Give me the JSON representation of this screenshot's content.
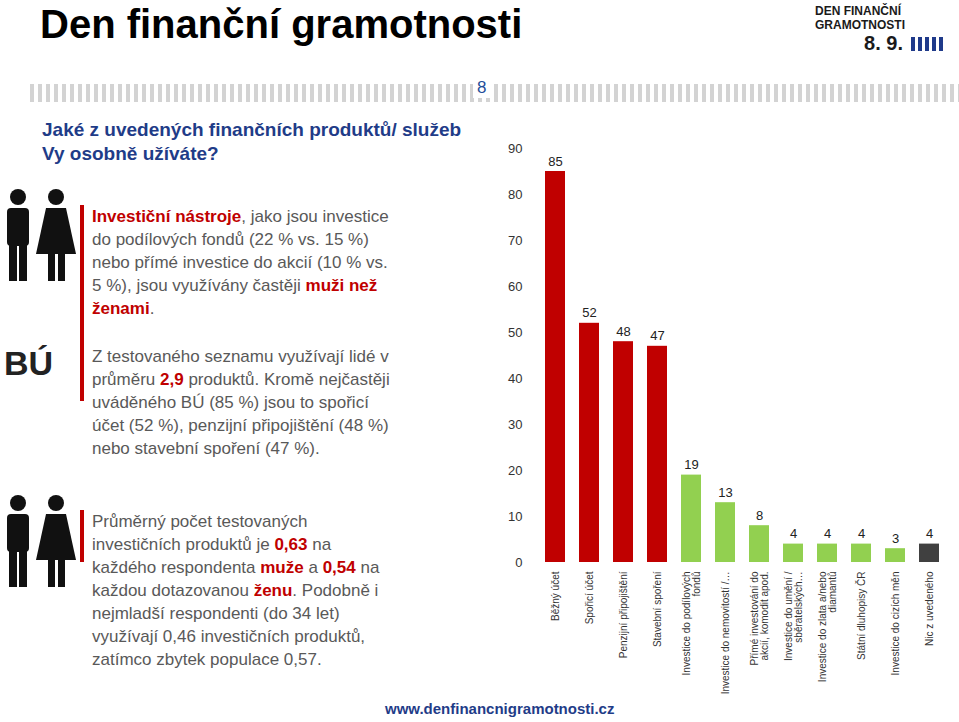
{
  "chart_data": {
    "type": "bar",
    "title": "Jaké z uvedených finančních produktů/ služeb Vy osobně užíváte?",
    "categories": [
      "Běžný účet",
      "Spořicí účet",
      "Penzijní připojištění",
      "Stavební spoření",
      "Investice do podílových fondů",
      "Investice do nemovitostí /…",
      "Přímé investování do akcií, komodit apod.",
      "Investice do umění / sběratelských…",
      "Investice do zlata a/nebo diamantů",
      "Státní dluhopisy ČR",
      "Investice do cizích měn",
      "Nic z uvedeného"
    ],
    "values": [
      85,
      52,
      48,
      47,
      19,
      13,
      8,
      4,
      4,
      4,
      3,
      4
    ],
    "colors": [
      "#c00000",
      "#c00000",
      "#c00000",
      "#c00000",
      "#92d050",
      "#92d050",
      "#92d050",
      "#92d050",
      "#92d050",
      "#92d050",
      "#92d050",
      "#404040"
    ],
    "ylim": [
      0,
      90
    ],
    "yticks": [
      0,
      10,
      20,
      30,
      40,
      50,
      60,
      70,
      80,
      90
    ],
    "grid": false,
    "data_labels": true
  },
  "slide": {
    "header": "Den finanční gramotnosti",
    "logo": [
      "DEN FINANČNÍ GRAMOTNOSTI",
      "8. 9."
    ],
    "page": "8",
    "badge": "BÚ",
    "url": "www.denfinancnigramotnosti.cz",
    "paragraphs": [
      [
        {
          "t": "Investiční nástroje",
          "em": true
        },
        {
          "t": ", jako jsou investice do podílových fondů (22 % vs. 15 %) nebo přímé investice do akcií (10 % vs. 5 %), jsou využívány častěji "
        },
        {
          "t": "muži než ženami",
          "em": true
        },
        {
          "t": "."
        }
      ],
      [
        {
          "t": "Z testovaného seznamu využívají lidé v průměru "
        },
        {
          "t": "2,9",
          "em": true
        },
        {
          "t": " produktů. Kromě nejčastěji uváděného BÚ (85 %) jsou to spořicí účet (52 %), penzijní připojištění (48 %) nebo stavební spoření (47 %)."
        }
      ],
      [
        {
          "t": "Průměrný počet testovaných investičních produktů je "
        },
        {
          "t": "0,63",
          "em": true
        },
        {
          "t": " na každého respondenta "
        },
        {
          "t": "muže",
          "em": true
        },
        {
          "t": " a "
        },
        {
          "t": "0,54",
          "em": true
        },
        {
          "t": " na každou dotazovanou "
        },
        {
          "t": "ženu",
          "em": true
        },
        {
          "t": ". Podobně i nejmladší respondenti (do 34 let) využívají 0,46 investičních produktů, zatímco zbytek populace 0,57."
        }
      ]
    ]
  }
}
